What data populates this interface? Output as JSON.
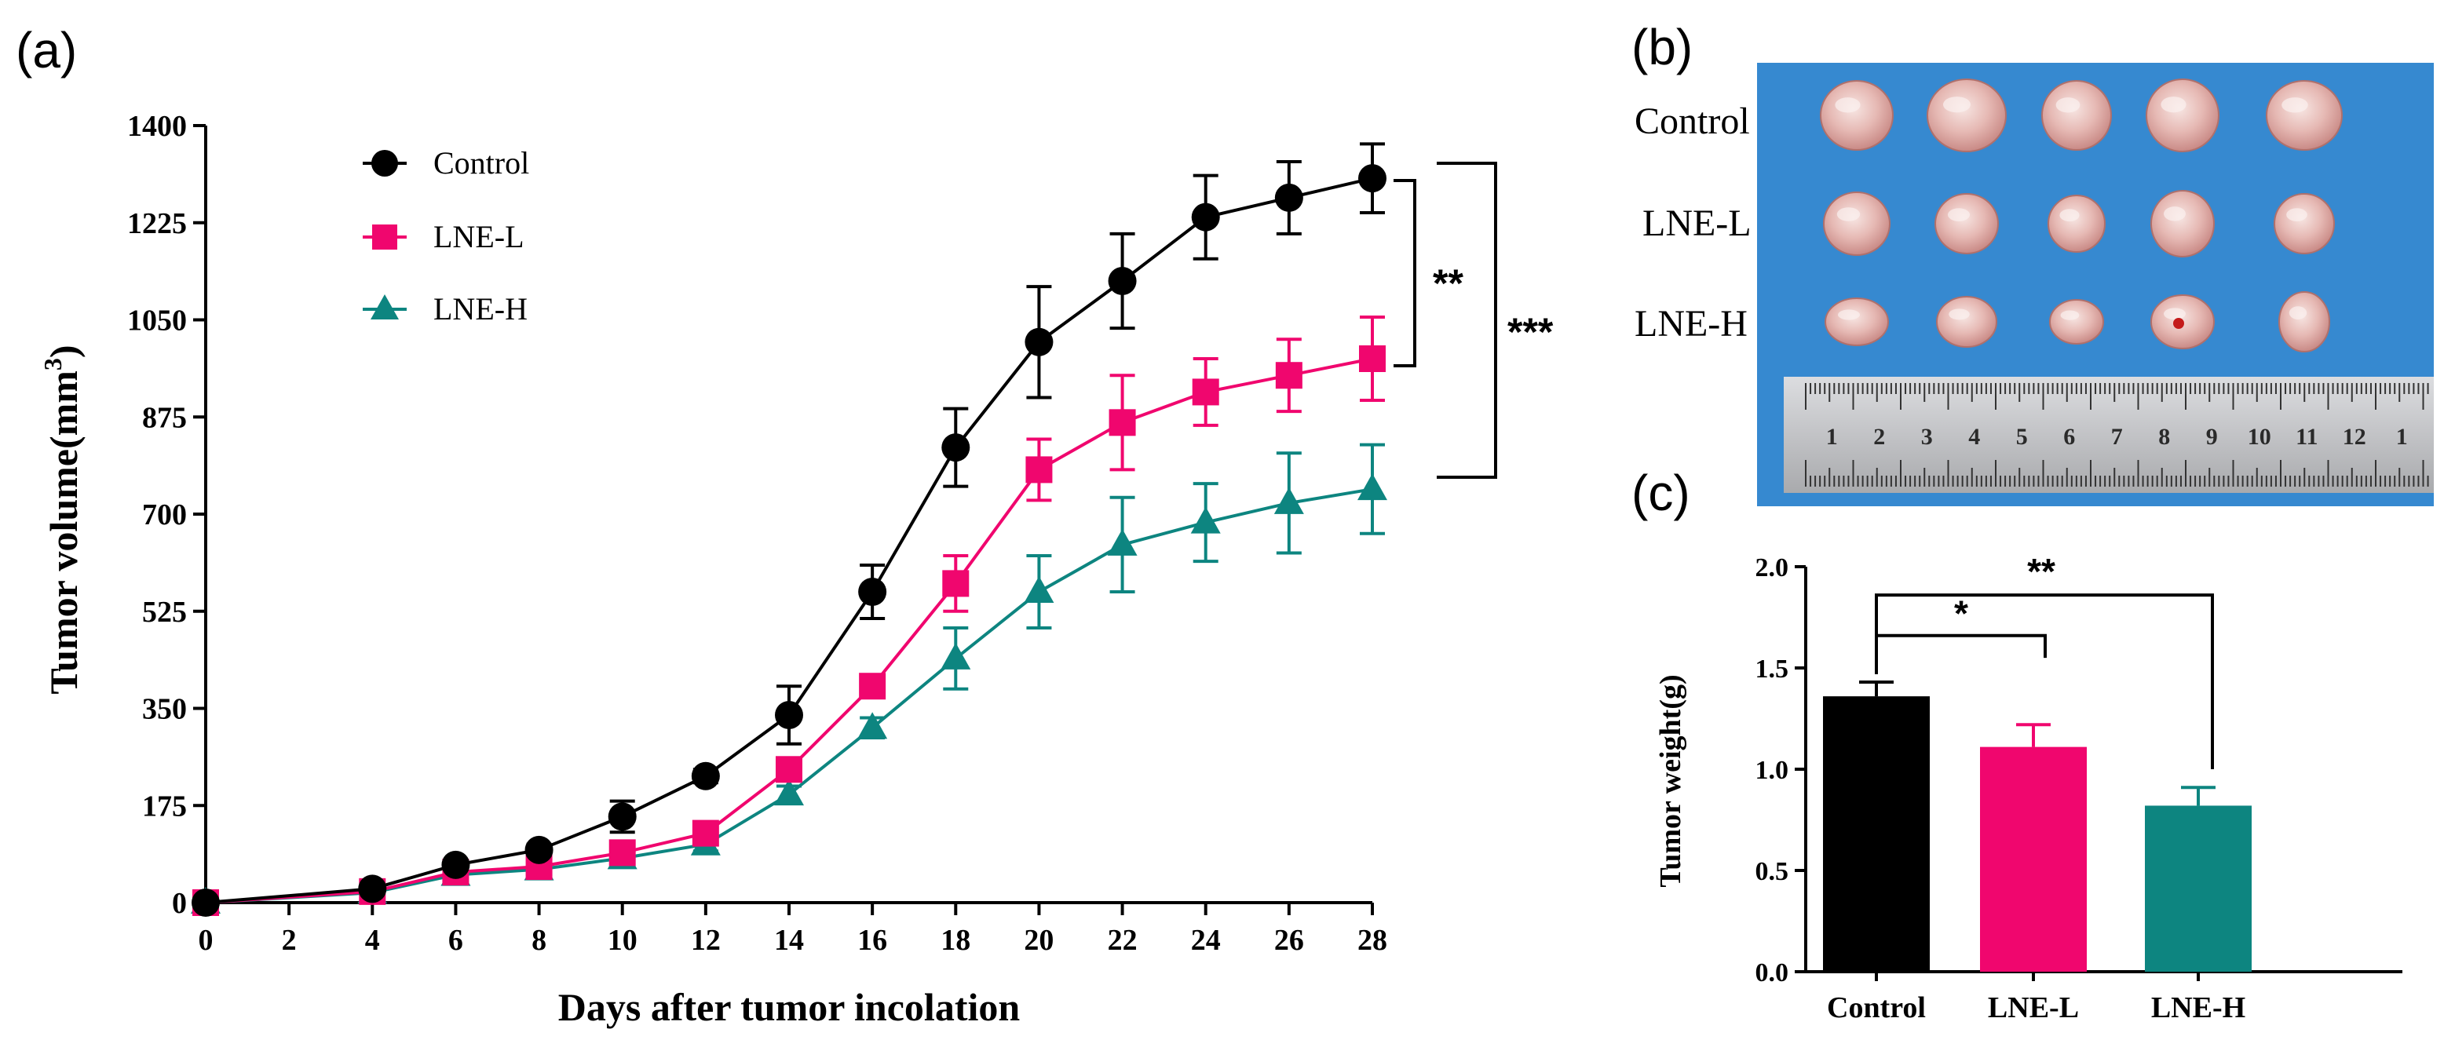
{
  "panels": {
    "a": "(a)",
    "b": "(b)",
    "c": "(c)"
  },
  "colors": {
    "control": "#000000",
    "lnel": "#f0066e",
    "lneh": "#0d8580",
    "photo_bg": "#3d8fd4",
    "ruler": "#c9cacc"
  },
  "chart_data": [
    {
      "type": "line",
      "panel": "a",
      "xlabel": "Days after tumor incolation",
      "ylabel": "Tumor volume(mm",
      "ylabel_sup": "3",
      "ylabel_close": ")",
      "xlim": [
        0,
        28
      ],
      "ylim": [
        0,
        1400
      ],
      "xticks": [
        "0",
        "2",
        "4",
        "6",
        "8",
        "10",
        "12",
        "14",
        "16",
        "18",
        "20",
        "22",
        "24",
        "26",
        "28"
      ],
      "yticks": [
        "0",
        "175",
        "350",
        "525",
        "700",
        "875",
        "1050",
        "1225",
        "1400"
      ],
      "x": [
        0,
        4,
        6,
        8,
        10,
        12,
        14,
        16,
        18,
        20,
        22,
        24,
        26,
        28
      ],
      "series": [
        {
          "name": "Control",
          "marker": "circle",
          "values": [
            0,
            25,
            68,
            95,
            155,
            228,
            338,
            560,
            820,
            1010,
            1120,
            1235,
            1270,
            1305
          ],
          "errors": [
            0,
            5,
            8,
            10,
            28,
            12,
            52,
            48,
            70,
            100,
            85,
            75,
            65,
            62
          ]
        },
        {
          "name": "LNE-L",
          "marker": "square",
          "values": [
            0,
            20,
            55,
            65,
            90,
            125,
            240,
            390,
            575,
            780,
            865,
            920,
            950,
            980
          ],
          "errors": [
            0,
            5,
            6,
            8,
            10,
            12,
            20,
            20,
            50,
            55,
            85,
            60,
            65,
            75
          ]
        },
        {
          "name": "LNE-H",
          "marker": "triangle",
          "values": [
            0,
            18,
            50,
            60,
            80,
            105,
            195,
            315,
            440,
            560,
            645,
            685,
            720,
            745
          ],
          "errors": [
            0,
            5,
            5,
            6,
            10,
            12,
            15,
            18,
            55,
            65,
            85,
            70,
            90,
            80
          ]
        }
      ],
      "annotations": [
        {
          "text": "**",
          "between": [
            "Control",
            "LNE-L"
          ]
        },
        {
          "text": "***",
          "between": [
            "Control",
            "LNE-H"
          ]
        }
      ]
    },
    {
      "type": "bar",
      "panel": "c",
      "ylabel": "Tumor weight(g)",
      "xlabel": "",
      "ylim": [
        0,
        2.0
      ],
      "yticks": [
        "0.0",
        "0.5",
        "1.0",
        "1.5",
        "2.0"
      ],
      "categories": [
        "Control",
        "LNE-L",
        "LNE-H"
      ],
      "values": [
        1.36,
        1.11,
        0.82
      ],
      "errors": [
        0.07,
        0.11,
        0.09
      ],
      "annotations": [
        {
          "text": "*",
          "between": [
            "Control",
            "LNE-L"
          ]
        },
        {
          "text": "**",
          "between": [
            "Control",
            "LNE-H"
          ]
        }
      ]
    }
  ],
  "photo": {
    "rows": [
      "Control",
      "LNE-L",
      "LNE-H"
    ],
    "ruler_numbers": [
      "1",
      "2",
      "3",
      "4",
      "5",
      "6",
      "7",
      "8",
      "9",
      "10",
      "11",
      "12",
      "1"
    ]
  }
}
